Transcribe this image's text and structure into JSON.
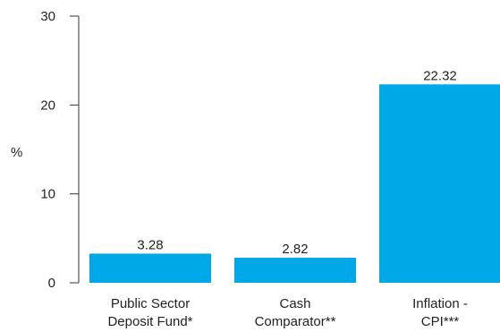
{
  "chart_data": {
    "type": "bar",
    "title": "",
    "xlabel": "",
    "ylabel": "%",
    "ylim": [
      0,
      30
    ],
    "yticks": [
      0,
      10,
      20,
      30
    ],
    "grid": false,
    "categories": [
      [
        "Public Sector",
        "Deposit Fund*"
      ],
      [
        "Cash",
        "Comparator**"
      ],
      [
        "Inflation -",
        "CPI***"
      ]
    ],
    "values": [
      3.28,
      2.82,
      22.32
    ],
    "data_labels": [
      "3.28",
      "2.82",
      "22.32"
    ],
    "bar_color": "#00a8e8"
  }
}
